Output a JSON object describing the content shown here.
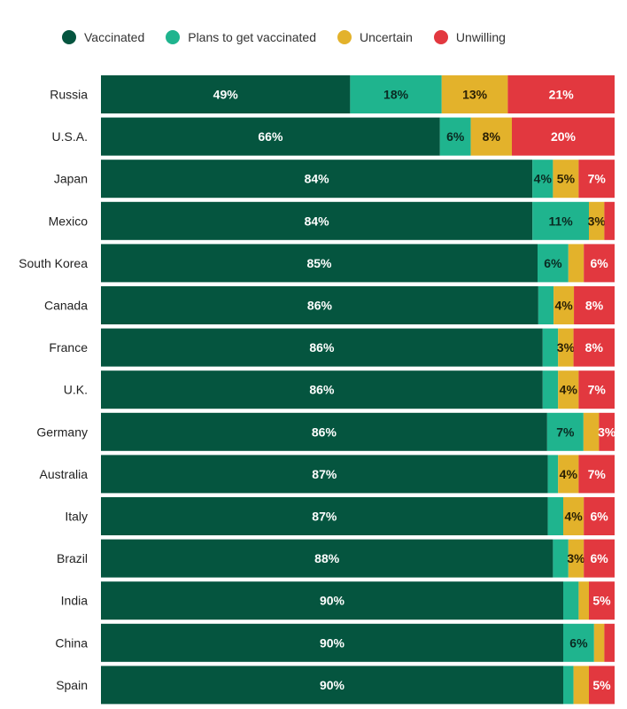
{
  "chart_data": {
    "type": "bar",
    "orientation": "horizontal",
    "stacked": true,
    "title": "",
    "xlabel": "",
    "ylabel": "",
    "xlim": [
      0,
      100
    ],
    "unit": "%",
    "legend_position": "top",
    "categories": [
      "Russia",
      "U.S.A.",
      "Japan",
      "Mexico",
      "South Korea",
      "Canada",
      "France",
      "U.K.",
      "Germany",
      "Australia",
      "Italy",
      "Brazil",
      "India",
      "China",
      "Spain"
    ],
    "series": [
      {
        "name": "Vaccinated",
        "color": "#05553f",
        "label_color": "#ffffff",
        "values": [
          49,
          66,
          84,
          84,
          85,
          86,
          86,
          86,
          86,
          87,
          87,
          88,
          90,
          90,
          90
        ],
        "labels": [
          "49%",
          "66%",
          "84%",
          "84%",
          "85%",
          "86%",
          "86%",
          "86%",
          "86%",
          "87%",
          "87%",
          "88%",
          "90%",
          "90%",
          "90%"
        ]
      },
      {
        "name": "Plans to get vaccinated",
        "color": "#1fb48e",
        "label_color": "#0a2a22",
        "values": [
          18,
          6,
          4,
          11,
          6,
          3,
          3,
          3,
          7,
          2,
          3,
          3,
          3,
          6,
          2
        ],
        "labels": [
          "18%",
          "6%",
          "4%",
          "11%",
          "6%",
          "",
          "",
          "",
          "7%",
          "",
          "",
          "",
          "",
          "6%",
          ""
        ]
      },
      {
        "name": "Uncertain",
        "color": "#e3b22b",
        "label_color": "#2a2005",
        "values": [
          13,
          8,
          5,
          3,
          3,
          4,
          3,
          4,
          3,
          4,
          4,
          3,
          2,
          2,
          3
        ],
        "labels": [
          "13%",
          "8%",
          "5%",
          "3%",
          "",
          "4%",
          "3%",
          "4%",
          "",
          "4%",
          "4%",
          "3%",
          "",
          "",
          ""
        ]
      },
      {
        "name": "Unwilling",
        "color": "#e2383f",
        "label_color": "#ffffff",
        "values": [
          21,
          20,
          7,
          2,
          6,
          8,
          8,
          7,
          3,
          7,
          6,
          6,
          5,
          2,
          5
        ],
        "labels": [
          "21%",
          "20%",
          "7%",
          "",
          "6%",
          "8%",
          "8%",
          "7%",
          "3%",
          "7%",
          "6%",
          "6%",
          "5%",
          "",
          "5%"
        ]
      }
    ]
  }
}
